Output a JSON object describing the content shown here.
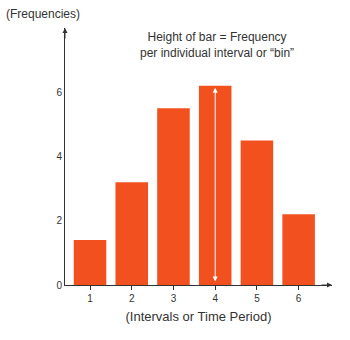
{
  "chart_data": {
    "type": "bar",
    "annotation": [
      "Height of bar = Frequency",
      "per individual interval or “bin”"
    ],
    "x_label": "(Intervals or Time Period)",
    "y_label": "(Frequencies)",
    "categories": [
      "1",
      "2",
      "3",
      "4",
      "5",
      "6"
    ],
    "values": [
      1.4,
      3.2,
      5.5,
      6.2,
      4.5,
      2.2
    ],
    "color": "#f2511f",
    "ylim": [
      0,
      8
    ],
    "yticks": [
      0,
      2,
      4,
      6
    ],
    "grid": false
  }
}
